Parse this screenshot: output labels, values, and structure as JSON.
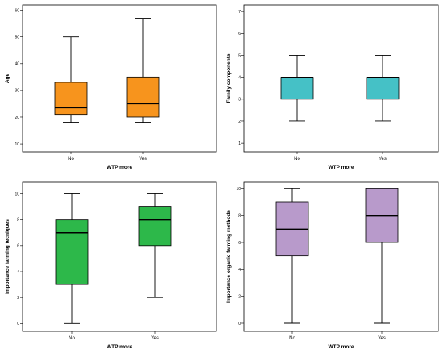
{
  "chart_data": [
    {
      "type": "box",
      "xlabel": "WTP more",
      "ylabel": "Age",
      "categories": [
        "No",
        "Yes"
      ],
      "ylim": [
        7,
        62
      ],
      "yticks": [
        10,
        20,
        30,
        40,
        50,
        60
      ],
      "color": "#F7941D",
      "boxes": [
        {
          "min": 18,
          "q1": 21,
          "median": 23.5,
          "q3": 33,
          "max": 50
        },
        {
          "min": 18,
          "q1": 20,
          "median": 25,
          "q3": 35,
          "max": 57
        }
      ]
    },
    {
      "type": "box",
      "xlabel": "WTP more",
      "ylabel": "Family components",
      "categories": [
        "No",
        "Yes"
      ],
      "ylim": [
        0.6,
        7.3
      ],
      "yticks": [
        1,
        2,
        3,
        4,
        5,
        6,
        7
      ],
      "color": "#45C1C6",
      "boxes": [
        {
          "min": 2,
          "q1": 3,
          "median": 4,
          "q3": 4,
          "max": 5
        },
        {
          "min": 2,
          "q1": 3,
          "median": 4,
          "q3": 4,
          "max": 5
        }
      ]
    },
    {
      "type": "box",
      "xlabel": "WTP more",
      "ylabel": "Importance farming tecniques",
      "categories": [
        "No",
        "Yes"
      ],
      "ylim": [
        -0.6,
        10.9
      ],
      "yticks": [
        0,
        2,
        4,
        6,
        8,
        10
      ],
      "color": "#2DB84A",
      "boxes": [
        {
          "min": 0,
          "q1": 3,
          "median": 7,
          "q3": 8,
          "max": 10
        },
        {
          "min": 2,
          "q1": 6,
          "median": 8,
          "q3": 9,
          "max": 10
        }
      ]
    },
    {
      "type": "box",
      "xlabel": "WTP more",
      "ylabel": "Importance organic farming methods",
      "categories": [
        "No",
        "Yes"
      ],
      "ylim": [
        -0.6,
        10.5
      ],
      "yticks": [
        0,
        2,
        4,
        6,
        8,
        10
      ],
      "color": "#B89ACB",
      "boxes": [
        {
          "min": 0,
          "q1": 5,
          "median": 7,
          "q3": 9,
          "max": 10
        },
        {
          "min": 0,
          "q1": 6,
          "median": 8,
          "q3": 10,
          "max": 10
        }
      ]
    }
  ]
}
